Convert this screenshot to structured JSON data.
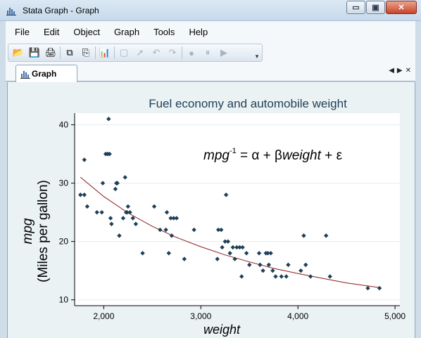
{
  "window": {
    "title": "Stata Graph - Graph",
    "minimize_label": "▭",
    "maximize_label": "▣",
    "close_label": "✕"
  },
  "menu": [
    "File",
    "Edit",
    "Object",
    "Graph",
    "Tools",
    "Help"
  ],
  "toolbar": [
    {
      "icon": "open-icon",
      "glyph": "📂",
      "enabled": true
    },
    {
      "icon": "save-icon",
      "glyph": "💾",
      "enabled": true
    },
    {
      "icon": "print-icon",
      "glyph": "🖨",
      "enabled": true
    },
    {
      "icon": "copy-icon",
      "glyph": "⧉",
      "enabled": true
    },
    {
      "icon": "copy-graph-icon",
      "glyph": "⎘",
      "enabled": true
    },
    {
      "icon": "graph-editor-icon",
      "glyph": "📊",
      "enabled": true
    },
    {
      "icon": "select-icon",
      "glyph": "▢",
      "enabled": false
    },
    {
      "icon": "pointer-icon",
      "glyph": "➚",
      "enabled": false
    },
    {
      "icon": "undo-icon",
      "glyph": "↶",
      "enabled": false
    },
    {
      "icon": "redo-icon",
      "glyph": "↷",
      "enabled": false
    },
    {
      "icon": "record-icon",
      "glyph": "●",
      "enabled": false
    },
    {
      "icon": "pause-icon",
      "glyph": "⏸",
      "enabled": false
    },
    {
      "icon": "play-icon",
      "glyph": "▶",
      "enabled": false
    }
  ],
  "tab": {
    "label": "Graph"
  },
  "tabnav": {
    "left": "◀",
    "right": "▶",
    "close": "✕"
  },
  "chart_data": {
    "type": "scatter",
    "title": "Fuel economy and automobile weight",
    "xlabel": "weight",
    "ylabel_line1": "mpg",
    "ylabel_line2": "(Miles per gallon)",
    "annotation": {
      "lhs": "mpg",
      "exponent": "-1",
      "rhs_eq": " = ",
      "alpha": "α",
      "plus1": " + ",
      "beta": "β",
      "weight": "weight",
      "plus2": " + ",
      "epsilon": "ε"
    },
    "xlim": [
      1700,
      5050
    ],
    "ylim": [
      9,
      42
    ],
    "xticks": [
      2000,
      3000,
      4000,
      5000
    ],
    "xtick_labels": [
      "2,000",
      "3,000",
      "4,000",
      "5,000"
    ],
    "yticks": [
      10,
      20,
      30,
      40
    ],
    "ytick_labels": [
      "10",
      "20",
      "30",
      "40"
    ],
    "grid": "horizontal",
    "colors": {
      "points": "#1f3f58",
      "fit": "#8b1a1a",
      "plot_bg": "#ffffff",
      "graph_bg": "#eaf2f3",
      "title": "#1f3f58"
    },
    "points": [
      [
        1760,
        28
      ],
      [
        1800,
        34
      ],
      [
        1800,
        28
      ],
      [
        1830,
        26
      ],
      [
        1930,
        25
      ],
      [
        1980,
        25
      ],
      [
        1990,
        30
      ],
      [
        2020,
        35
      ],
      [
        2040,
        35
      ],
      [
        2050,
        41
      ],
      [
        2060,
        35
      ],
      [
        2070,
        24
      ],
      [
        2080,
        23
      ],
      [
        2120,
        29
      ],
      [
        2130,
        30
      ],
      [
        2140,
        30
      ],
      [
        2160,
        21
      ],
      [
        2200,
        24
      ],
      [
        2220,
        31
      ],
      [
        2230,
        25
      ],
      [
        2240,
        25
      ],
      [
        2250,
        26
      ],
      [
        2270,
        25
      ],
      [
        2300,
        24
      ],
      [
        2330,
        23
      ],
      [
        2400,
        18
      ],
      [
        2520,
        26
      ],
      [
        2580,
        22
      ],
      [
        2640,
        22
      ],
      [
        2650,
        25
      ],
      [
        2670,
        18
      ],
      [
        2690,
        24
      ],
      [
        2700,
        21
      ],
      [
        2720,
        24
      ],
      [
        2750,
        24
      ],
      [
        2830,
        17
      ],
      [
        2930,
        22
      ],
      [
        3170,
        17
      ],
      [
        3180,
        22
      ],
      [
        3210,
        22
      ],
      [
        3220,
        19
      ],
      [
        3250,
        20
      ],
      [
        3260,
        28
      ],
      [
        3280,
        20
      ],
      [
        3300,
        18
      ],
      [
        3330,
        19
      ],
      [
        3350,
        17
      ],
      [
        3370,
        19
      ],
      [
        3400,
        19
      ],
      [
        3420,
        14
      ],
      [
        3430,
        19
      ],
      [
        3470,
        18
      ],
      [
        3500,
        16
      ],
      [
        3600,
        18
      ],
      [
        3610,
        16
      ],
      [
        3640,
        15
      ],
      [
        3670,
        18
      ],
      [
        3690,
        18
      ],
      [
        3700,
        16
      ],
      [
        3720,
        18
      ],
      [
        3740,
        15
      ],
      [
        3770,
        14
      ],
      [
        3830,
        14
      ],
      [
        3880,
        14
      ],
      [
        3900,
        16
      ],
      [
        4030,
        15
      ],
      [
        4060,
        21
      ],
      [
        4080,
        16
      ],
      [
        4130,
        14
      ],
      [
        4290,
        21
      ],
      [
        4330,
        14
      ],
      [
        4720,
        12
      ],
      [
        4840,
        12
      ]
    ],
    "fit_curve": [
      [
        1760,
        31.0
      ],
      [
        2000,
        27.7
      ],
      [
        2250,
        24.9
      ],
      [
        2500,
        22.6
      ],
      [
        2750,
        20.7
      ],
      [
        3000,
        19.1
      ],
      [
        3250,
        17.7
      ],
      [
        3500,
        16.5
      ],
      [
        3750,
        15.4
      ],
      [
        4000,
        14.5
      ],
      [
        4250,
        13.7
      ],
      [
        4500,
        12.9
      ],
      [
        4840,
        12.1
      ]
    ]
  }
}
